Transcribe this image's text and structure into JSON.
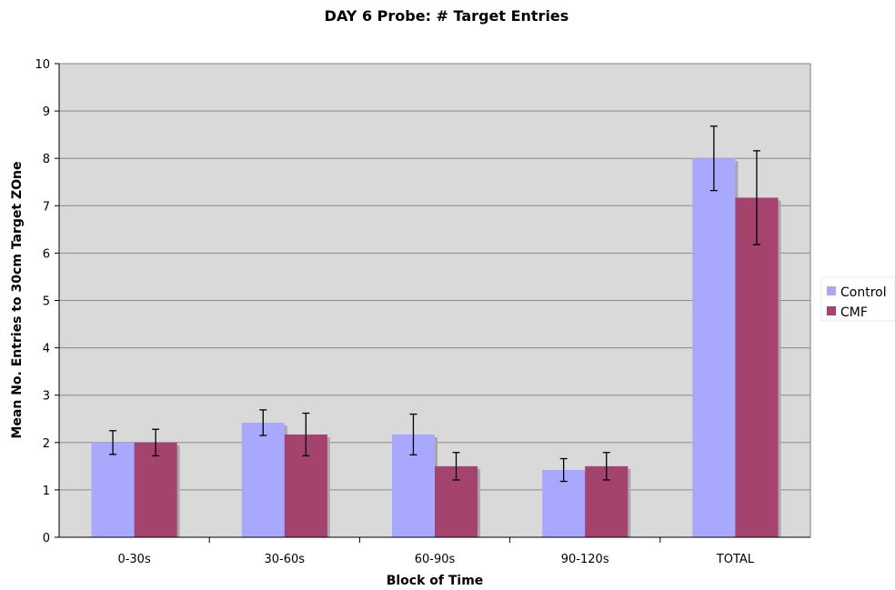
{
  "chart_data": {
    "type": "bar",
    "title": "DAY 6 Probe: # Target Entries",
    "xlabel": "Block of Time",
    "ylabel": "Mean No. Entries to 30cm Target ZOne",
    "categories": [
      "0-30s",
      "30-60s",
      "60-90s",
      "90-120s",
      "TOTAL"
    ],
    "ylim": [
      0,
      10
    ],
    "yticks": [
      0,
      1,
      2,
      3,
      4,
      5,
      6,
      7,
      8,
      9,
      10
    ],
    "grid": true,
    "legend_position": "right",
    "series": [
      {
        "name": "Control",
        "color": "#a8a8ff",
        "values": [
          2.0,
          2.42,
          2.17,
          1.42,
          8.0
        ],
        "error": [
          0.25,
          0.27,
          0.43,
          0.24,
          0.68
        ]
      },
      {
        "name": "CMF",
        "color": "#a5436f",
        "values": [
          2.0,
          2.17,
          1.5,
          1.5,
          7.17
        ],
        "error": [
          0.28,
          0.45,
          0.29,
          0.29,
          0.99
        ]
      }
    ]
  }
}
